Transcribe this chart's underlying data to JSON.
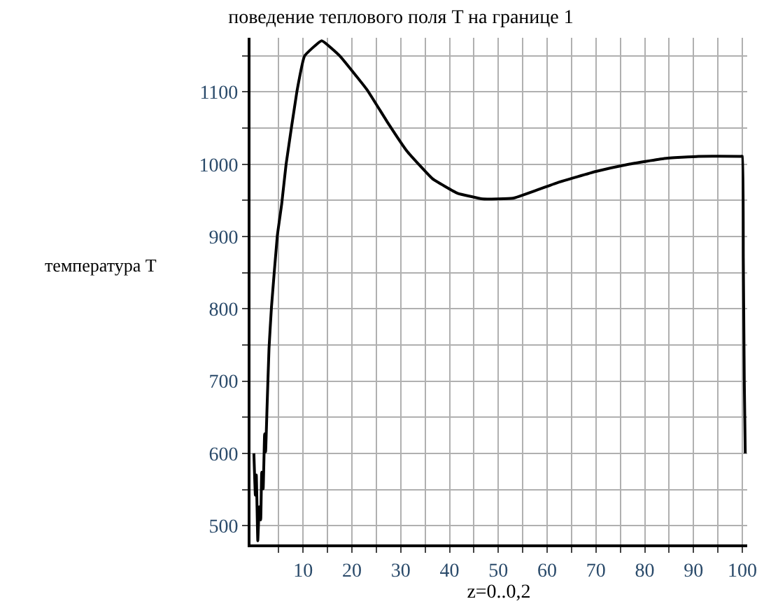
{
  "chart_data": {
    "type": "line",
    "title": "поведение теплового поля T на границе 1",
    "xlabel": "z=0..0,2",
    "ylabel": "температура T",
    "x": [
      -0.1,
      0.2,
      0.4,
      0.7,
      1.0,
      1.3,
      1.5,
      1.8,
      2.1,
      2.3,
      2.6,
      3.0,
      3.5,
      4.7,
      5.6,
      6.5,
      8.7,
      10.3,
      13.8,
      17.5,
      23.1,
      27.2,
      31.3,
      36.5,
      41.6,
      46.8,
      53.0,
      62.3,
      70.0,
      76.7,
      84.0,
      91.0,
      99.7,
      100.0,
      100.2,
      100.4,
      100.6
    ],
    "series": [
      {
        "color": "#000000",
        "values": [
          600,
          542,
          570,
          479,
          526,
          508,
          574,
          551,
          627,
          602,
          664,
          745,
          802,
          901,
          945,
          1000,
          1100,
          1150,
          1171,
          1150,
          1103,
          1059,
          1018,
          980,
          960,
          952,
          953,
          975,
          990,
          1000,
          1008,
          1011,
          1011,
          1011,
          870,
          700,
          600
        ]
      }
    ],
    "xlim": [
      -0.8,
      101
    ],
    "ylim": [
      474,
      1175
    ],
    "xticks": [
      {
        "value": 5,
        "label": null
      },
      10,
      {
        "value": 15,
        "label": null
      },
      20,
      {
        "value": 25,
        "label": null
      },
      30,
      {
        "value": 35,
        "label": null
      },
      40,
      {
        "value": 45,
        "label": null
      },
      50,
      {
        "value": 55,
        "label": null
      },
      60,
      {
        "value": 65,
        "label": null
      },
      70,
      {
        "value": 75,
        "label": null
      },
      80,
      {
        "value": 85,
        "label": null
      },
      90,
      {
        "value": 95,
        "label": null
      },
      100
    ],
    "yticks": [
      500,
      {
        "value": 550,
        "label": null
      },
      600,
      {
        "value": 650,
        "label": null
      },
      700,
      {
        "value": 750,
        "label": null
      },
      800,
      {
        "value": 850,
        "label": null
      },
      900,
      {
        "value": 950,
        "label": null
      },
      1000,
      {
        "value": 1050,
        "label": null
      },
      1100,
      {
        "value": 1150,
        "label": null
      }
    ],
    "grid": true,
    "marker": "none",
    "line_style": "solid"
  }
}
